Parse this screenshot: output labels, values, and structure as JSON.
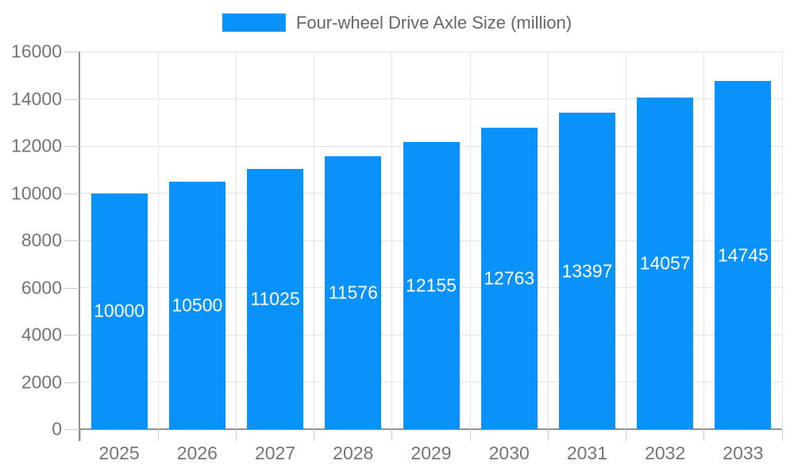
{
  "chart_data": {
    "type": "bar",
    "title": "Four-wheel Drive Axle Size (million)",
    "legend": {
      "position": "top-center",
      "entries": [
        "Four-wheel Drive Axle Size (million)"
      ]
    },
    "categories": [
      "2025",
      "2026",
      "2027",
      "2028",
      "2029",
      "2030",
      "2031",
      "2032",
      "2033"
    ],
    "series": [
      {
        "name": "Four-wheel Drive Axle Size (million)",
        "values": [
          10000,
          10500,
          11025,
          11576,
          12155,
          12763,
          13397,
          14057,
          14745
        ]
      }
    ],
    "xlabel": "",
    "ylabel": "",
    "ylim": [
      0,
      16000
    ],
    "yticks": [
      0,
      2000,
      4000,
      6000,
      8000,
      10000,
      12000,
      14000,
      16000
    ],
    "grid": true,
    "bar_labels_inside": true,
    "colors": {
      "bar": "#0992fa",
      "bar_label_text": "#ffffff",
      "grid_line": "#e4e4e4",
      "axis_line": "#919191",
      "tick": "#cccccc",
      "axis_text": "#757575",
      "legend_text": "#666666"
    }
  }
}
